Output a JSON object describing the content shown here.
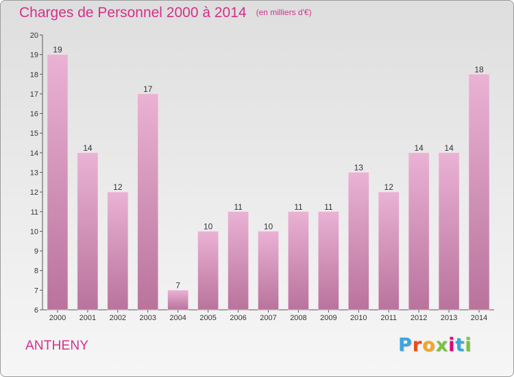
{
  "title": "Charges de Personnel 2000 à 2014",
  "subtitle": "(en milliers d'€)",
  "commune": "ANTHENY",
  "logo": {
    "text": "Proxiti",
    "letter_colors": [
      "#3aa6dd",
      "#e94e1b",
      "#f5a623",
      "#7cc242",
      "#e2007a",
      "#3aa6dd",
      "#7cc242"
    ]
  },
  "colors": {
    "title": "#d2308a",
    "bar_top": "#eab2d4",
    "bar_bottom": "#b9739c",
    "axis": "#555555",
    "text": "#333333"
  },
  "chart_data": {
    "type": "bar",
    "title": "Charges de Personnel 2000 à 2014",
    "subtitle": "(en milliers d'€)",
    "categories": [
      "2000",
      "2001",
      "2002",
      "2003",
      "2004",
      "2005",
      "2006",
      "2007",
      "2008",
      "2009",
      "2010",
      "2011",
      "2012",
      "2013",
      "2014"
    ],
    "values": [
      19,
      14,
      12,
      17,
      7,
      10,
      11,
      10,
      11,
      11,
      13,
      12,
      14,
      14,
      18
    ],
    "ylim": [
      6,
      20
    ],
    "yticks": [
      6,
      7,
      8,
      9,
      10,
      11,
      12,
      13,
      14,
      15,
      16,
      17,
      18,
      19,
      20
    ],
    "grid": false,
    "data_labels": true
  }
}
